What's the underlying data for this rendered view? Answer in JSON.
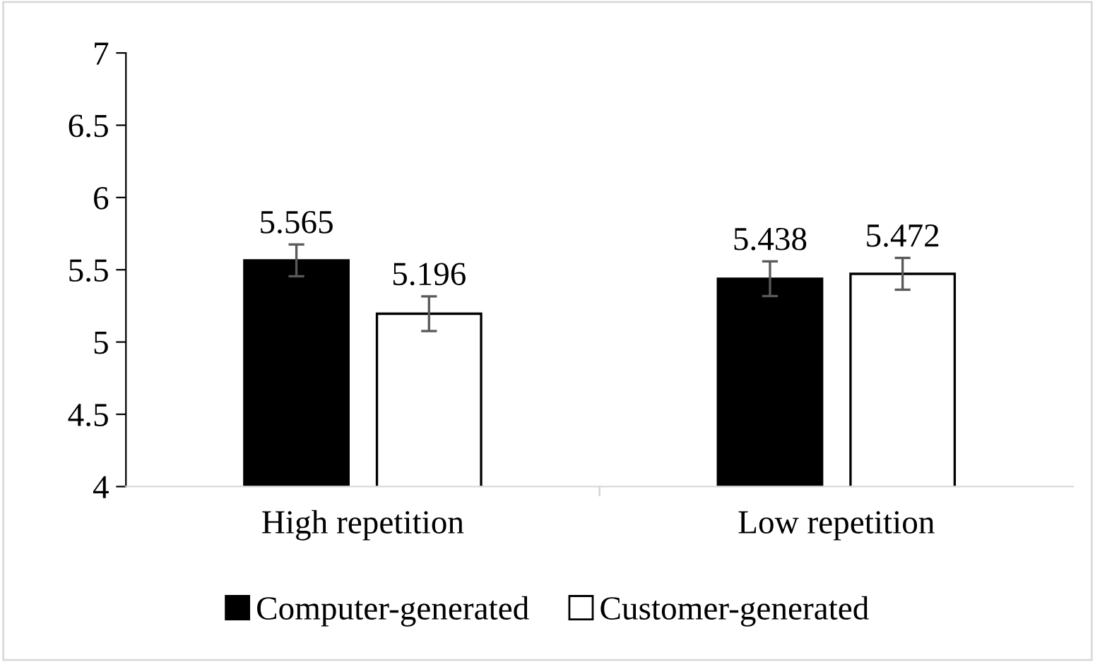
{
  "chart_data": {
    "type": "bar",
    "categories": [
      "High repetition",
      "Low repetition"
    ],
    "series": [
      {
        "name": "Computer-generated",
        "color": "#000000",
        "values": [
          5.565,
          5.438
        ],
        "errors": [
          0.11,
          0.12
        ]
      },
      {
        "name": "Customer-generated",
        "color": "#ffffff",
        "values": [
          5.196,
          5.472
        ],
        "errors": [
          0.12,
          0.11
        ]
      }
    ],
    "ylim": [
      4,
      7
    ],
    "yticks": [
      4,
      4.5,
      5,
      5.5,
      6,
      6.5,
      7
    ],
    "data_labels": true,
    "grid": false,
    "legend": "bottom"
  }
}
